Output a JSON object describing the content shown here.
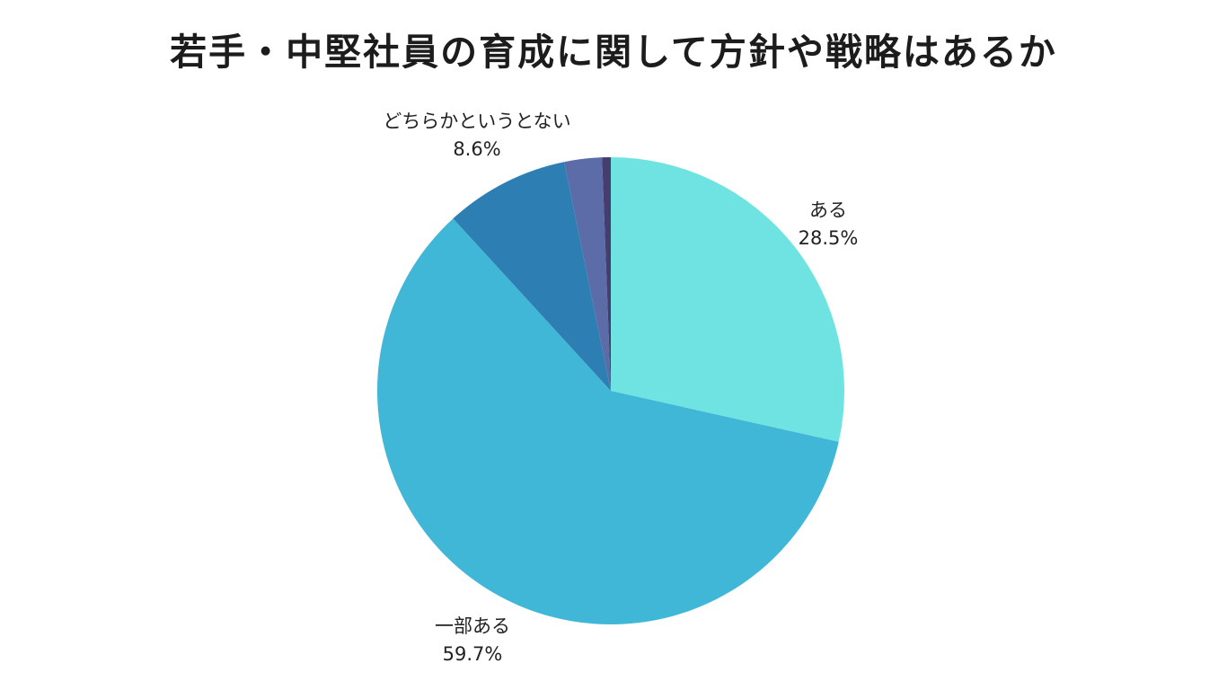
{
  "chart_data": {
    "type": "pie",
    "title": "若手・中堅社員の育成に関して方針や戦略はあるか",
    "legend_position": "none",
    "start_angle_deg": 0,
    "direction": "clockwise",
    "background_color": "#ffffff",
    "slices": [
      {
        "label": "ある",
        "value": 28.5,
        "pct_label": "28.5%",
        "color": "#6FE2E2",
        "label_visible": true
      },
      {
        "label": "一部ある",
        "value": 59.7,
        "pct_label": "59.7%",
        "color": "#41B7D8",
        "label_visible": true
      },
      {
        "label": "どちらかというとない",
        "value": 8.6,
        "pct_label": "8.6%",
        "color": "#2D7FB3",
        "label_visible": true
      },
      {
        "label": "",
        "value": 2.6,
        "pct_label": "",
        "color": "#5B6CA8",
        "label_visible": false
      },
      {
        "label": "",
        "value": 0.6,
        "pct_label": "",
        "color": "#443D6E",
        "label_visible": false
      }
    ]
  }
}
